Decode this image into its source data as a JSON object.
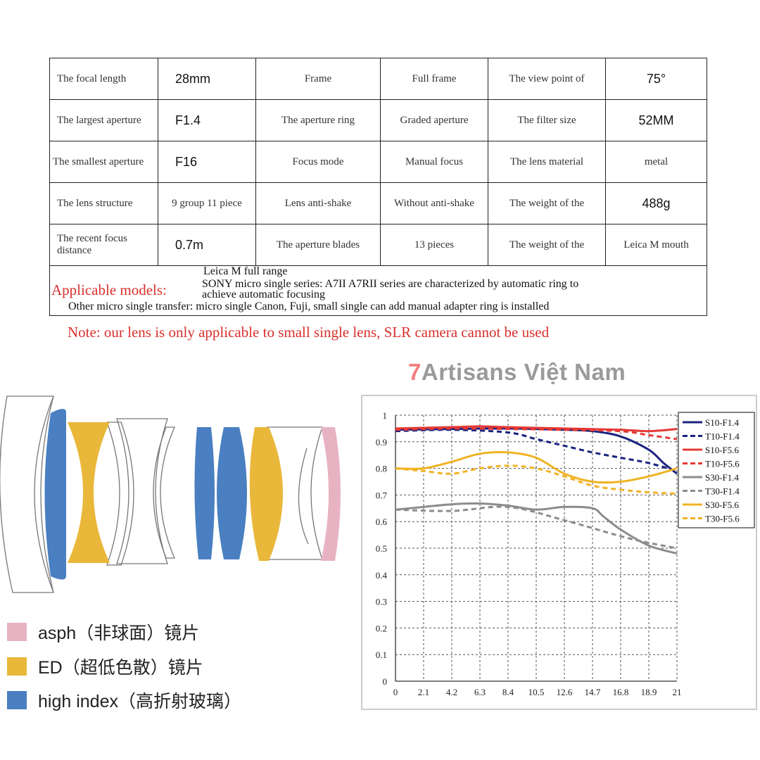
{
  "spec_table": {
    "rows": [
      [
        "The focal length",
        "28mm",
        "Frame",
        "Full frame",
        "The view point of",
        "75°"
      ],
      [
        "The largest aperture",
        "F1.4",
        "The aperture ring",
        "Graded aperture",
        "The filter size",
        "52MM"
      ],
      [
        "The smallest aperture",
        "F16",
        "Focus mode",
        "Manual focus",
        "The lens material",
        "metal"
      ],
      [
        "The lens structure",
        "9 group 11 piece",
        "Lens anti-shake",
        "Without anti-shake",
        "The weight of the",
        "488g"
      ],
      [
        "The recent focus distance",
        "0.7m",
        "The aperture blades",
        "13 pieces",
        "The weight of the",
        "Leica M mouth"
      ]
    ],
    "applicable_title": "Applicable models:",
    "applicable_lines": [
      "Leica M full range",
      "SONY micro single series: A7II A7RII series are characterized by automatic ring to",
      "achieve automatic focusing",
      "Other micro single transfer: micro single Canon, Fuji, small single can add manual adapter ring is installed"
    ]
  },
  "note": "Note: our lens is only applicable to small single lens, SLR camera cannot be used",
  "brand": {
    "prefix": "7",
    "name": "Artisans Việt Nam"
  },
  "lens_legend": [
    {
      "label": "asph（非球面）镜片",
      "color": "#e7b3c2"
    },
    {
      "label": "ED（超低色散）镜片",
      "color": "#e9b73a"
    },
    {
      "label": "high index（高折射玻璃）",
      "color": "#4a7fc1"
    }
  ],
  "chart_data": {
    "type": "line",
    "x_ticks": [
      "0",
      "2.1",
      "4.2",
      "6.3",
      "8.4",
      "10.5",
      "12.6",
      "14.7",
      "16.8",
      "18.9",
      "21"
    ],
    "y_ticks": [
      "0",
      "0.1",
      "0.2",
      "0.3",
      "0.4",
      "0.5",
      "0.6",
      "0.7",
      "0.8",
      "0.9",
      "1"
    ],
    "xlim": [
      0,
      21
    ],
    "ylim": [
      0,
      1
    ],
    "grid": true,
    "legend_position": "top-right",
    "series": [
      {
        "name": "S10-F1.4",
        "color": "#1a237e",
        "dash": false,
        "x": [
          0,
          4.2,
          8.4,
          12.6,
          14.7,
          16.8,
          18.9,
          20,
          21
        ],
        "y": [
          0.945,
          0.948,
          0.95,
          0.945,
          0.94,
          0.92,
          0.87,
          0.82,
          0.78
        ]
      },
      {
        "name": "T10-F1.4",
        "color": "#1a237e",
        "dash": true,
        "x": [
          0,
          4.2,
          8.4,
          10.5,
          12.6,
          14.7,
          16.8,
          18.9,
          21
        ],
        "y": [
          0.94,
          0.945,
          0.935,
          0.91,
          0.885,
          0.86,
          0.84,
          0.82,
          0.79
        ]
      },
      {
        "name": "S10-F5.6",
        "color": "#e53935",
        "dash": false,
        "x": [
          0,
          4.2,
          6.3,
          8.4,
          12.6,
          16.8,
          18.9,
          21
        ],
        "y": [
          0.95,
          0.955,
          0.958,
          0.955,
          0.95,
          0.945,
          0.94,
          0.948
        ]
      },
      {
        "name": "T10-F5.6",
        "color": "#e53935",
        "dash": true,
        "x": [
          0,
          4.2,
          8.4,
          12.6,
          16.8,
          18.9,
          21
        ],
        "y": [
          0.945,
          0.95,
          0.948,
          0.945,
          0.94,
          0.925,
          0.91
        ]
      },
      {
        "name": "S30-F1.4",
        "color": "#8c8c8c",
        "dash": false,
        "x": [
          0,
          2.1,
          4.2,
          6.3,
          8.4,
          10.5,
          12.6,
          14.7,
          15.5,
          16.8,
          18.9,
          21
        ],
        "y": [
          0.645,
          0.655,
          0.665,
          0.668,
          0.66,
          0.645,
          0.655,
          0.65,
          0.62,
          0.57,
          0.51,
          0.48
        ]
      },
      {
        "name": "T30-F1.4",
        "color": "#8c8c8c",
        "dash": true,
        "x": [
          0,
          4.2,
          8.4,
          12.6,
          16.8,
          18.9,
          21
        ],
        "y": [
          0.645,
          0.64,
          0.655,
          0.605,
          0.545,
          0.52,
          0.5
        ]
      },
      {
        "name": "S30-F5.6",
        "color": "#f0b323",
        "dash": false,
        "x": [
          0,
          2.1,
          4.2,
          6.3,
          8.4,
          10.5,
          12.6,
          14.7,
          16.8,
          18.9,
          21
        ],
        "y": [
          0.8,
          0.8,
          0.825,
          0.855,
          0.86,
          0.84,
          0.78,
          0.75,
          0.75,
          0.77,
          0.8
        ]
      },
      {
        "name": "T30-F5.6",
        "color": "#f0b323",
        "dash": true,
        "x": [
          0,
          2.1,
          4.2,
          6.3,
          8.4,
          10.5,
          12.6,
          14.7,
          16.8,
          18.9,
          21
        ],
        "y": [
          0.8,
          0.79,
          0.78,
          0.8,
          0.81,
          0.8,
          0.77,
          0.735,
          0.72,
          0.71,
          0.705
        ]
      }
    ]
  }
}
